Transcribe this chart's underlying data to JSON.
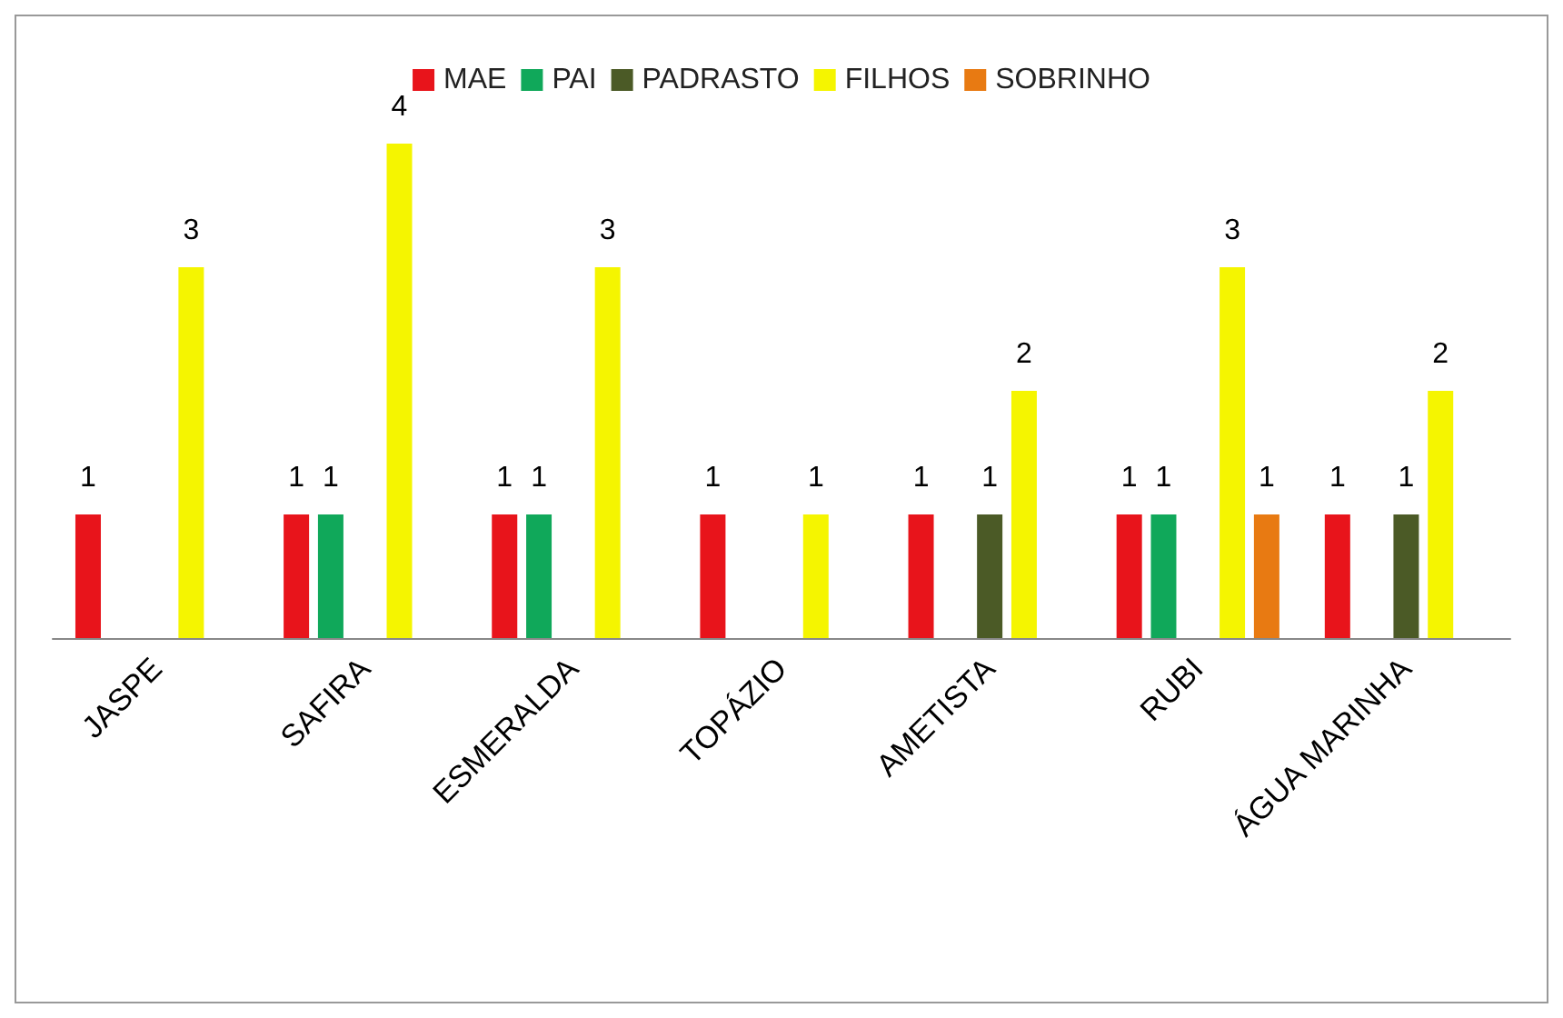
{
  "chart_data": {
    "type": "bar",
    "categories": [
      "JASPE",
      "SAFIRA",
      "ESMERALDA",
      "TOPÁZIO",
      "AMETISTA",
      "RUBI",
      "ÁGUA MARINHA"
    ],
    "series": [
      {
        "name": "MAE",
        "color": "#e8141b",
        "values": [
          1,
          1,
          1,
          1,
          1,
          1,
          1
        ]
      },
      {
        "name": "PAI",
        "color": "#10a85a",
        "values": [
          null,
          1,
          1,
          null,
          null,
          1,
          null
        ]
      },
      {
        "name": "PADRASTO",
        "color": "#4b5a26",
        "values": [
          null,
          null,
          null,
          null,
          1,
          null,
          1
        ]
      },
      {
        "name": "FILHOS",
        "color": "#f5f500",
        "values": [
          3,
          4,
          3,
          1,
          2,
          3,
          2
        ]
      },
      {
        "name": "SOBRINHO",
        "color": "#e87a12",
        "values": [
          null,
          null,
          null,
          null,
          null,
          1,
          null
        ]
      }
    ],
    "data_labels": true,
    "legend": "top",
    "grid": false
  }
}
